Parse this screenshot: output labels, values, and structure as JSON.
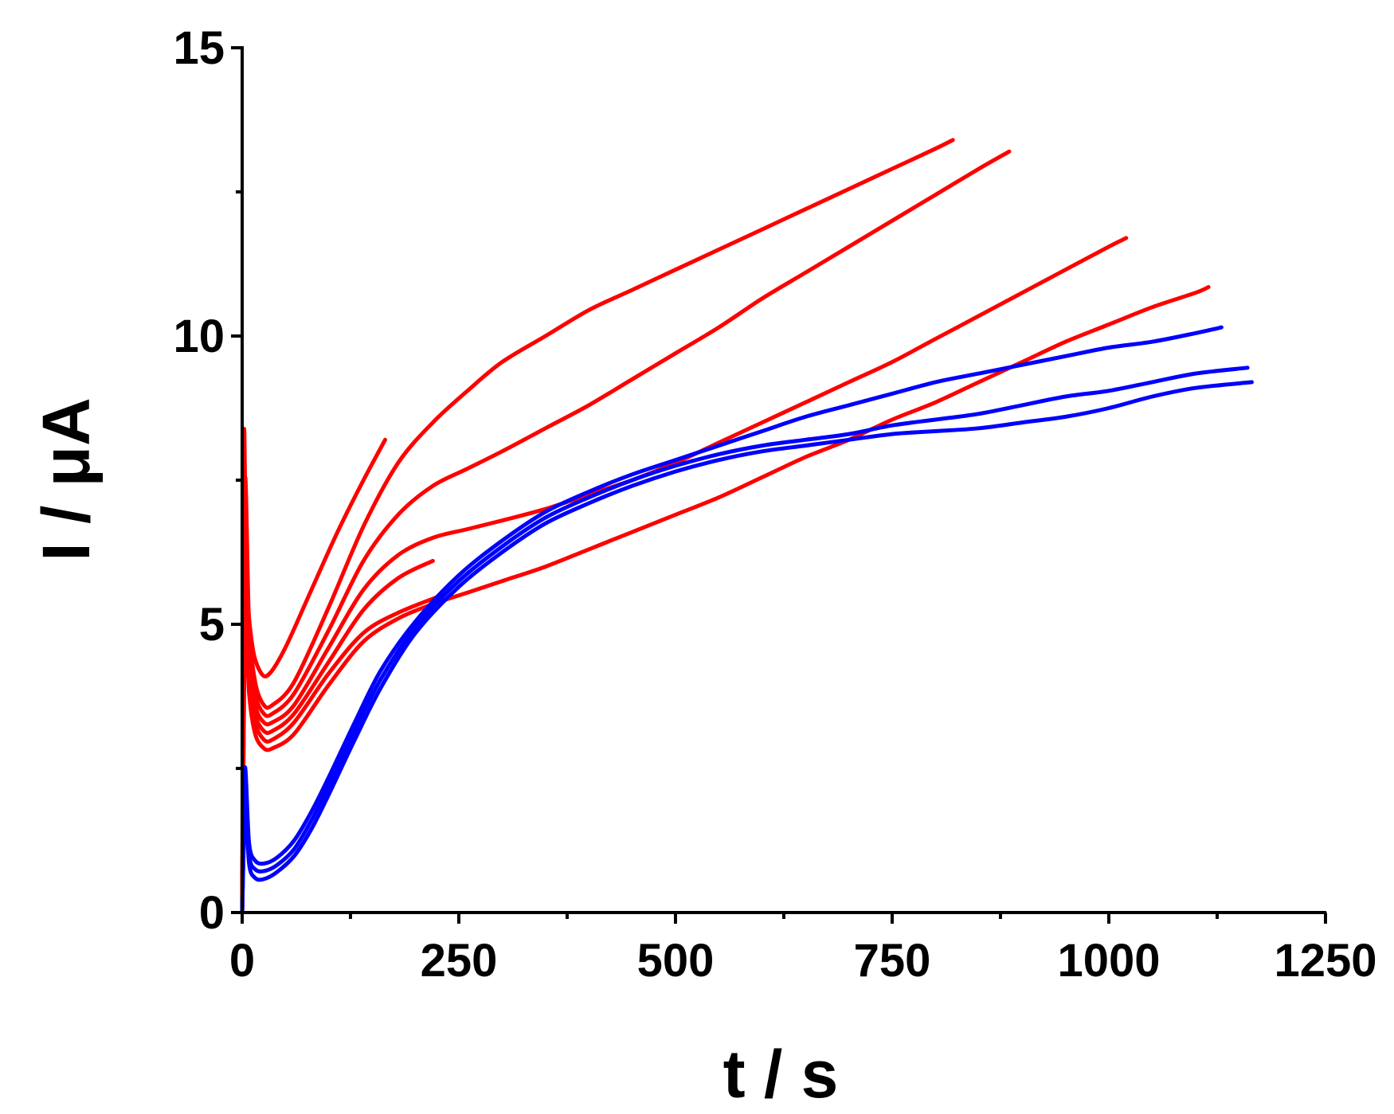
{
  "chart_data": {
    "type": "line",
    "xlabel": "t / s",
    "ylabel": "I / μA",
    "xlim": [
      0,
      1250
    ],
    "ylim": [
      0,
      15
    ],
    "x_ticks": [
      0,
      250,
      500,
      750,
      1000,
      1250
    ],
    "y_ticks": [
      0,
      5,
      10,
      15
    ],
    "grid": false,
    "colors": {
      "red": "#ff0000",
      "blue": "#0000ff"
    },
    "series": [
      {
        "color": "red",
        "x": [
          0,
          2,
          5,
          12,
          22,
          32,
          50,
          80,
          110,
          140,
          165
        ],
        "y": [
          0,
          8.2,
          5.8,
          4.6,
          4.15,
          4.15,
          4.6,
          5.6,
          6.6,
          7.5,
          8.2
        ]
      },
      {
        "color": "red",
        "x": [
          0,
          3,
          8,
          15,
          25,
          35,
          60,
          100,
          140,
          180,
          220,
          260,
          300,
          350,
          400,
          450,
          500,
          550,
          600,
          650,
          700,
          750,
          800,
          820
        ],
        "y": [
          0,
          7.4,
          5.0,
          4.0,
          3.6,
          3.6,
          4.0,
          5.3,
          6.7,
          7.8,
          8.5,
          9.05,
          9.55,
          10.0,
          10.45,
          10.8,
          11.15,
          11.5,
          11.85,
          12.2,
          12.55,
          12.9,
          13.25,
          13.4
        ]
      },
      {
        "color": "red",
        "x": [
          0,
          3,
          8,
          15,
          25,
          35,
          60,
          100,
          140,
          180,
          220,
          260,
          300,
          350,
          400,
          450,
          500,
          550,
          600,
          650,
          700,
          750,
          800,
          850,
          885
        ],
        "y": [
          0,
          7.0,
          4.8,
          3.8,
          3.45,
          3.45,
          3.8,
          4.9,
          6.1,
          6.9,
          7.4,
          7.7,
          8.0,
          8.4,
          8.8,
          9.25,
          9.7,
          10.15,
          10.65,
          11.1,
          11.55,
          12.0,
          12.45,
          12.9,
          13.2
        ]
      },
      {
        "color": "red",
        "x": [
          0,
          3,
          8,
          15,
          25,
          35,
          60,
          100,
          140,
          180,
          220,
          260,
          300,
          350,
          400,
          450,
          500,
          550,
          600,
          650,
          700,
          750,
          800,
          850,
          900,
          950,
          1000,
          1020
        ],
        "y": [
          0,
          6.4,
          4.5,
          3.6,
          3.3,
          3.3,
          3.6,
          4.6,
          5.6,
          6.2,
          6.5,
          6.65,
          6.8,
          7.0,
          7.25,
          7.5,
          7.8,
          8.15,
          8.5,
          8.85,
          9.2,
          9.55,
          9.95,
          10.35,
          10.75,
          11.15,
          11.55,
          11.7
        ]
      },
      {
        "color": "red",
        "x": [
          0,
          3,
          8,
          15,
          25,
          35,
          60,
          100,
          140,
          180,
          220
        ],
        "y": [
          0,
          6.0,
          4.3,
          3.45,
          3.15,
          3.15,
          3.45,
          4.35,
          5.25,
          5.8,
          6.1
        ]
      },
      {
        "color": "red",
        "x": [
          0,
          3,
          8,
          15,
          25,
          35,
          60,
          100,
          140,
          180,
          230
        ],
        "y": [
          0,
          5.6,
          4.1,
          3.3,
          3.0,
          3.0,
          3.3,
          4.15,
          4.85,
          5.2,
          5.5
        ]
      },
      {
        "color": "red",
        "x": [
          0,
          3,
          8,
          15,
          25,
          35,
          60,
          100,
          140,
          180,
          220,
          260,
          300,
          350,
          400,
          450,
          500,
          550,
          600,
          650,
          700,
          750,
          800,
          850,
          900,
          950,
          1000,
          1050,
          1100,
          1115
        ],
        "y": [
          0,
          5.2,
          3.8,
          3.1,
          2.85,
          2.85,
          3.1,
          3.95,
          4.7,
          5.1,
          5.35,
          5.55,
          5.75,
          6.0,
          6.3,
          6.6,
          6.9,
          7.2,
          7.55,
          7.9,
          8.2,
          8.55,
          8.85,
          9.2,
          9.55,
          9.9,
          10.2,
          10.5,
          10.75,
          10.85
        ]
      },
      {
        "color": "blue",
        "x": [
          0,
          3,
          8,
          15,
          25,
          40,
          60,
          80,
          100,
          130,
          160,
          200,
          250,
          300,
          350,
          400,
          450,
          500,
          550,
          600,
          650,
          700,
          750,
          800,
          850,
          900,
          950,
          1000,
          1050,
          1100,
          1130
        ],
        "y": [
          0,
          2.5,
          1.2,
          0.9,
          0.85,
          0.95,
          1.25,
          1.75,
          2.35,
          3.3,
          4.2,
          5.05,
          5.85,
          6.45,
          6.95,
          7.3,
          7.6,
          7.85,
          8.1,
          8.35,
          8.6,
          8.8,
          9.0,
          9.2,
          9.35,
          9.5,
          9.65,
          9.8,
          9.9,
          10.05,
          10.15
        ]
      },
      {
        "color": "blue",
        "x": [
          0,
          3,
          8,
          15,
          25,
          40,
          60,
          80,
          100,
          130,
          160,
          200,
          250,
          300,
          350,
          400,
          450,
          500,
          550,
          600,
          650,
          700,
          750,
          800,
          850,
          900,
          950,
          1000,
          1050,
          1100,
          1160
        ],
        "y": [
          0,
          2.2,
          1.0,
          0.75,
          0.72,
          0.82,
          1.1,
          1.6,
          2.2,
          3.15,
          4.05,
          4.95,
          5.75,
          6.35,
          6.85,
          7.2,
          7.5,
          7.75,
          7.95,
          8.1,
          8.2,
          8.3,
          8.45,
          8.55,
          8.65,
          8.8,
          8.95,
          9.05,
          9.2,
          9.35,
          9.45
        ]
      },
      {
        "color": "blue",
        "x": [
          0,
          3,
          8,
          15,
          25,
          40,
          60,
          80,
          100,
          130,
          160,
          200,
          250,
          300,
          350,
          400,
          450,
          500,
          550,
          600,
          650,
          700,
          750,
          800,
          850,
          900,
          950,
          1000,
          1050,
          1100,
          1165
        ],
        "y": [
          0,
          2.0,
          0.85,
          0.6,
          0.58,
          0.7,
          0.98,
          1.45,
          2.05,
          3.0,
          3.9,
          4.85,
          5.65,
          6.25,
          6.75,
          7.1,
          7.4,
          7.65,
          7.85,
          8.0,
          8.1,
          8.2,
          8.3,
          8.35,
          8.4,
          8.5,
          8.6,
          8.75,
          8.95,
          9.1,
          9.2
        ]
      }
    ]
  }
}
